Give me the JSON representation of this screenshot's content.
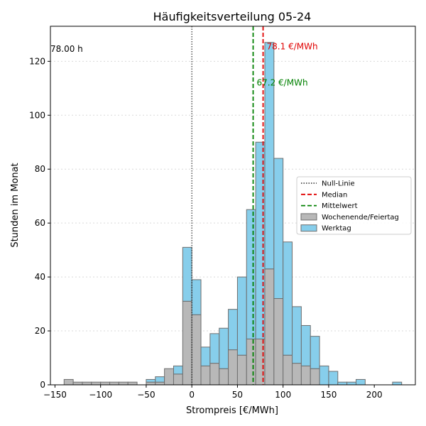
{
  "chart_data": {
    "type": "bar",
    "stacked": true,
    "title": "Häufigkeitsverteilung 05-24",
    "xlabel": "Strompreis [€/MWh]",
    "ylabel": "Stunden im Monat",
    "xlim": [
      -155,
      245
    ],
    "ylim": [
      0,
      133
    ],
    "xticks": [
      -150,
      -100,
      -50,
      0,
      50,
      100,
      150,
      200
    ],
    "yticks": [
      0,
      20,
      40,
      60,
      80,
      100,
      120
    ],
    "grid": {
      "y": true,
      "x": false
    },
    "bin_width": 10,
    "bin_starts": [
      -140,
      -130,
      -120,
      -110,
      -100,
      -90,
      -80,
      -70,
      -60,
      -50,
      -40,
      -30,
      -20,
      -10,
      0,
      10,
      20,
      30,
      40,
      50,
      60,
      70,
      80,
      90,
      100,
      110,
      120,
      130,
      140,
      150,
      160,
      170,
      180,
      190,
      200,
      210,
      220
    ],
    "series": [
      {
        "name": "Wochenende/Feiertag",
        "color": "#b8b8b8",
        "values": [
          2,
          1,
          1,
          1,
          1,
          1,
          1,
          1,
          0,
          1,
          1,
          6,
          4,
          31,
          26,
          7,
          8,
          6,
          13,
          11,
          17,
          17,
          43,
          32,
          11,
          8,
          7,
          6,
          0,
          0,
          0,
          0,
          0,
          0,
          0,
          0,
          0
        ]
      },
      {
        "name": "Werktag",
        "color": "#87ceeb",
        "values": [
          0,
          0,
          0,
          0,
          0,
          0,
          0,
          0,
          0,
          1,
          2,
          0,
          3,
          20,
          13,
          7,
          11,
          15,
          15,
          29,
          48,
          73,
          84,
          52,
          42,
          21,
          15,
          12,
          7,
          5,
          1,
          1,
          2,
          0,
          0,
          0,
          1
        ]
      }
    ],
    "reference_lines": [
      {
        "name": "Null-Linie",
        "x": 0,
        "color": "#000000",
        "style": "dotted",
        "label": ""
      },
      {
        "name": "Median",
        "x": 78.1,
        "color": "#e00000",
        "style": "dashed",
        "label": "78.1 €/MWh"
      },
      {
        "name": "Mittelwert",
        "x": 67.2,
        "color": "#008000",
        "style": "dashed",
        "label": "67.2 €/MWh"
      }
    ],
    "corner_annotation": "78.00 h",
    "legend": {
      "position": "center-right",
      "entries": [
        {
          "label": "Null-Linie",
          "kind": "line",
          "color": "#000000",
          "style": "dotted"
        },
        {
          "label": "Median",
          "kind": "line",
          "color": "#e00000",
          "style": "dashed"
        },
        {
          "label": "Mittelwert",
          "kind": "line",
          "color": "#008000",
          "style": "dashed"
        },
        {
          "label": "Wochenende/Feiertag",
          "kind": "patch",
          "color": "#b8b8b8"
        },
        {
          "label": "Werktag",
          "kind": "patch",
          "color": "#87ceeb"
        }
      ]
    }
  }
}
